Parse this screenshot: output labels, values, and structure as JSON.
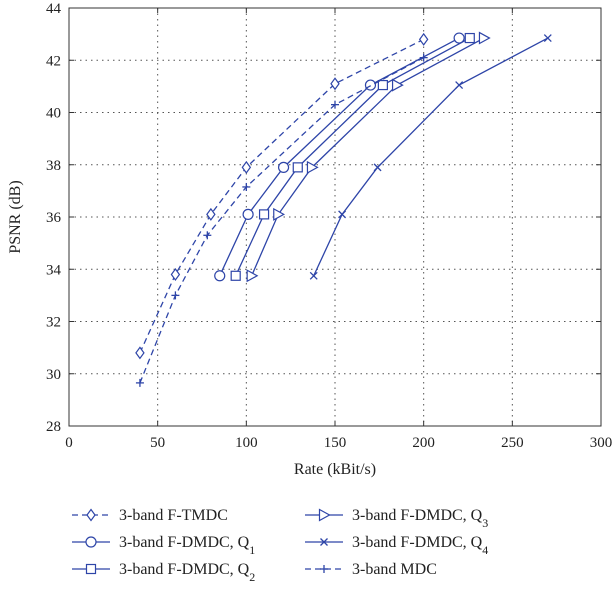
{
  "chart_data": {
    "type": "line",
    "title": "",
    "xlabel": "Rate (kBit/s)",
    "ylabel": "PSNR (dB)",
    "xlim": [
      0,
      300
    ],
    "ylim": [
      28,
      44
    ],
    "xticks": [
      0,
      50,
      100,
      150,
      200,
      250,
      300
    ],
    "yticks": [
      28,
      30,
      32,
      34,
      36,
      38,
      40,
      42,
      44
    ],
    "grid": true,
    "legend_position": "below",
    "color": "#2e45a8",
    "series": [
      {
        "name": "3-band F-TMDC",
        "base": "3-band F-TMDC",
        "sub": "",
        "marker": "diamond",
        "dash": true,
        "x": [
          40,
          60,
          80,
          100,
          150,
          200
        ],
        "y": [
          30.8,
          33.8,
          36.1,
          37.9,
          41.1,
          42.8
        ]
      },
      {
        "name": "3-band F-DMDC, Q1",
        "base": "3-band F-DMDC, Q",
        "sub": "1",
        "marker": "circle",
        "dash": false,
        "x": [
          85,
          101,
          121,
          170,
          220
        ],
        "y": [
          33.75,
          36.1,
          37.9,
          41.05,
          42.85
        ]
      },
      {
        "name": "3-band F-DMDC, Q2",
        "base": "3-band F-DMDC, Q",
        "sub": "2",
        "marker": "square",
        "dash": false,
        "x": [
          94,
          110,
          129,
          177,
          226
        ],
        "y": [
          33.75,
          36.1,
          37.9,
          41.05,
          42.85
        ]
      },
      {
        "name": "3-band F-DMDC, Q3",
        "base": "3-band F-DMDC, Q",
        "sub": "3",
        "marker": "triangle-right",
        "dash": false,
        "x": [
          103,
          118,
          137,
          185,
          234
        ],
        "y": [
          33.75,
          36.1,
          37.9,
          41.05,
          42.85
        ]
      },
      {
        "name": "3-band F-DMDC, Q4",
        "base": "3-band F-DMDC, Q",
        "sub": "4",
        "marker": "x",
        "dash": false,
        "x": [
          138,
          154,
          174,
          220,
          270
        ],
        "y": [
          33.75,
          36.1,
          37.9,
          41.05,
          42.85
        ]
      },
      {
        "name": "3-band MDC",
        "base": "3-band MDC",
        "sub": "",
        "marker": "plus",
        "dash": true,
        "x": [
          40,
          60,
          78,
          100,
          150,
          200
        ],
        "y": [
          29.65,
          33.0,
          35.3,
          37.15,
          40.3,
          42.1
        ]
      }
    ]
  }
}
